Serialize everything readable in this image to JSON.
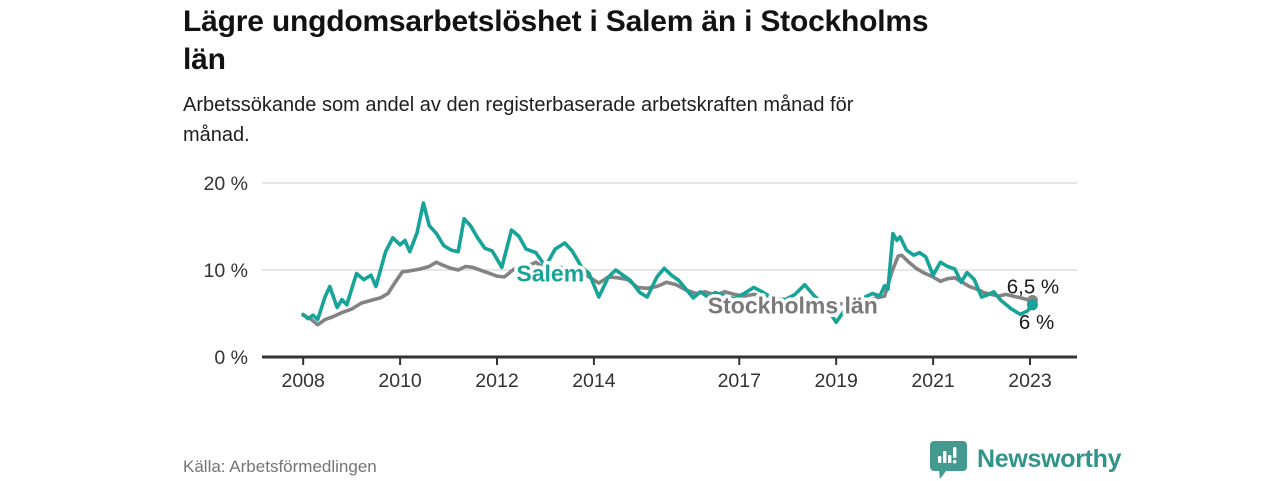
{
  "header": {
    "title": "Lägre ungdomsarbetslöshet i Salem än i Stockholms län",
    "title_lines": [
      "Lägre ungdomsarbetslöshet i Salem än i Stockholms",
      "län"
    ],
    "subtitle": "Arbetssökande som andel av den registerbaserade arbetskraften månad för månad.",
    "subtitle_lines": [
      "Arbetssökande som andel av den registerbaserade arbetskraften månad för",
      "månad."
    ]
  },
  "footer": {
    "source": "Källa: Arbetsförmedlingen",
    "brand": "Newsworthy"
  },
  "colors": {
    "salem": "#17a398",
    "stockholm": "#838383",
    "stockholm_label": "#7a7a7a",
    "grid": "#d8d8d8",
    "axis": "#333333",
    "tick_text": "#333333",
    "value_label": "#1a1a1a",
    "halo": "#ffffff",
    "brand": "#30948b",
    "brand_icon": "#459a90"
  },
  "chart_data": {
    "type": "line",
    "title": "Lägre ungdomsarbetslöshet i Salem än i Stockholms län",
    "subtitle": "Arbetssökande som andel av den registerbaserade arbetskraften månad för månad.",
    "xlabel": "",
    "ylabel": "",
    "unit": "%",
    "grid": "horizontal",
    "legend": "inline-labels",
    "ylim": [
      0,
      20
    ],
    "xlim": [
      2007.15,
      2023.97
    ],
    "yticks": [
      {
        "value": 0,
        "label": "0 %"
      },
      {
        "value": 10,
        "label": "10 %"
      },
      {
        "value": 20,
        "label": "20 %"
      }
    ],
    "xticks": [
      {
        "value": 2008,
        "label": "2008"
      },
      {
        "value": 2010,
        "label": "2010"
      },
      {
        "value": 2012,
        "label": "2012"
      },
      {
        "value": 2014,
        "label": "2014"
      },
      {
        "value": 2017,
        "label": "2017"
      },
      {
        "value": 2019,
        "label": "2019"
      },
      {
        "value": 2021,
        "label": "2021"
      },
      {
        "value": 2023,
        "label": "2023"
      }
    ],
    "series": [
      {
        "name": "Stockholms län",
        "color": "#838383",
        "end_value": 6.5,
        "label": {
          "text": "Stockholms län",
          "x": 2016.35,
          "y": 5.0,
          "color": "#7a7a7a"
        },
        "end_label": {
          "text": "6,5 %",
          "x": 2022.52,
          "y": 7.3
        },
        "points": [
          [
            2008.0,
            4.8
          ],
          [
            2008.15,
            4.4
          ],
          [
            2008.3,
            3.7
          ],
          [
            2008.45,
            4.3
          ],
          [
            2008.6,
            4.6
          ],
          [
            2008.8,
            5.1
          ],
          [
            2009.0,
            5.5
          ],
          [
            2009.2,
            6.2
          ],
          [
            2009.4,
            6.5
          ],
          [
            2009.6,
            6.8
          ],
          [
            2009.75,
            7.3
          ],
          [
            2009.9,
            8.6
          ],
          [
            2010.05,
            9.8
          ],
          [
            2010.2,
            9.9
          ],
          [
            2010.4,
            10.1
          ],
          [
            2010.6,
            10.4
          ],
          [
            2010.75,
            10.9
          ],
          [
            2010.9,
            10.5
          ],
          [
            2011.05,
            10.2
          ],
          [
            2011.2,
            10.0
          ],
          [
            2011.35,
            10.4
          ],
          [
            2011.5,
            10.3
          ],
          [
            2011.65,
            10.0
          ],
          [
            2011.8,
            9.7
          ],
          [
            2012.0,
            9.3
          ],
          [
            2012.15,
            9.2
          ],
          [
            2012.35,
            10.1
          ],
          [
            2012.5,
            10.0
          ],
          [
            2012.65,
            10.5
          ],
          [
            2012.8,
            10.9
          ],
          [
            2012.95,
            10.3
          ],
          [
            2013.1,
            10.0
          ],
          [
            2013.3,
            10.3
          ],
          [
            2013.5,
            10.2
          ],
          [
            2013.7,
            9.8
          ],
          [
            2013.9,
            9.2
          ],
          [
            2014.1,
            8.5
          ],
          [
            2014.3,
            9.2
          ],
          [
            2014.5,
            9.1
          ],
          [
            2014.7,
            8.9
          ],
          [
            2014.9,
            8.0
          ],
          [
            2015.1,
            7.9
          ],
          [
            2015.3,
            8.1
          ],
          [
            2015.5,
            8.6
          ],
          [
            2015.7,
            8.3
          ],
          [
            2015.9,
            7.7
          ],
          [
            2016.1,
            7.3
          ],
          [
            2016.3,
            7.5
          ],
          [
            2016.5,
            7.1
          ],
          [
            2016.7,
            7.5
          ],
          [
            2016.9,
            7.2
          ],
          [
            2017.1,
            7.0
          ],
          [
            2017.3,
            7.2
          ],
          [
            2017.5,
            7.0
          ],
          [
            2017.7,
            6.8
          ],
          [
            2017.9,
            6.6
          ],
          [
            2018.1,
            6.5
          ],
          [
            2018.3,
            6.7
          ],
          [
            2018.5,
            6.5
          ],
          [
            2018.7,
            6.3
          ],
          [
            2018.9,
            6.2
          ],
          [
            2019.1,
            6.1
          ],
          [
            2019.3,
            6.3
          ],
          [
            2019.5,
            6.5
          ],
          [
            2019.7,
            6.6
          ],
          [
            2019.85,
            6.8
          ],
          [
            2020.0,
            7.0
          ],
          [
            2020.15,
            9.8
          ],
          [
            2020.28,
            11.6
          ],
          [
            2020.35,
            11.7
          ],
          [
            2020.5,
            10.9
          ],
          [
            2020.65,
            10.2
          ],
          [
            2020.8,
            9.7
          ],
          [
            2021.0,
            9.2
          ],
          [
            2021.15,
            8.7
          ],
          [
            2021.3,
            9.0
          ],
          [
            2021.45,
            9.1
          ],
          [
            2021.6,
            8.6
          ],
          [
            2021.75,
            8.1
          ],
          [
            2021.9,
            7.8
          ],
          [
            2022.05,
            7.4
          ],
          [
            2022.2,
            7.2
          ],
          [
            2022.35,
            7.0
          ],
          [
            2022.5,
            7.2
          ],
          [
            2022.65,
            7.0
          ],
          [
            2022.8,
            6.8
          ],
          [
            2022.95,
            6.6
          ],
          [
            2023.05,
            6.5
          ]
        ]
      },
      {
        "name": "Salem",
        "color": "#17a398",
        "end_value": 6.0,
        "label": {
          "text": "Salem",
          "x": 2012.4,
          "y": 8.7,
          "color": "#17a398"
        },
        "end_label": {
          "text": "6 %",
          "x": 2022.77,
          "y": 3.2
        },
        "points": [
          [
            2008.0,
            4.9
          ],
          [
            2008.1,
            4.4
          ],
          [
            2008.2,
            4.8
          ],
          [
            2008.3,
            4.3
          ],
          [
            2008.45,
            6.9
          ],
          [
            2008.55,
            8.1
          ],
          [
            2008.7,
            5.7
          ],
          [
            2008.8,
            6.6
          ],
          [
            2008.9,
            6.0
          ],
          [
            2009.1,
            9.6
          ],
          [
            2009.25,
            8.9
          ],
          [
            2009.4,
            9.4
          ],
          [
            2009.5,
            8.1
          ],
          [
            2009.7,
            12.1
          ],
          [
            2009.85,
            13.7
          ],
          [
            2010.0,
            12.9
          ],
          [
            2010.1,
            13.4
          ],
          [
            2010.2,
            12.1
          ],
          [
            2010.35,
            14.3
          ],
          [
            2010.48,
            17.7
          ],
          [
            2010.6,
            15.1
          ],
          [
            2010.75,
            14.2
          ],
          [
            2010.9,
            12.8
          ],
          [
            2011.05,
            12.3
          ],
          [
            2011.2,
            12.1
          ],
          [
            2011.32,
            15.9
          ],
          [
            2011.45,
            15.1
          ],
          [
            2011.6,
            13.7
          ],
          [
            2011.75,
            12.5
          ],
          [
            2011.9,
            12.2
          ],
          [
            2012.1,
            10.3
          ],
          [
            2012.3,
            14.6
          ],
          [
            2012.45,
            13.9
          ],
          [
            2012.6,
            12.4
          ],
          [
            2012.8,
            12.0
          ],
          [
            2013.0,
            10.4
          ],
          [
            2013.2,
            12.4
          ],
          [
            2013.4,
            13.1
          ],
          [
            2013.55,
            12.2
          ],
          [
            2013.75,
            10.3
          ],
          [
            2013.9,
            9.6
          ],
          [
            2014.1,
            6.9
          ],
          [
            2014.3,
            9.2
          ],
          [
            2014.45,
            10.0
          ],
          [
            2014.6,
            9.4
          ],
          [
            2014.75,
            8.8
          ],
          [
            2014.95,
            7.4
          ],
          [
            2015.1,
            6.9
          ],
          [
            2015.3,
            9.2
          ],
          [
            2015.45,
            10.2
          ],
          [
            2015.6,
            9.4
          ],
          [
            2015.75,
            8.8
          ],
          [
            2015.9,
            7.8
          ],
          [
            2016.05,
            6.8
          ],
          [
            2016.2,
            7.5
          ],
          [
            2016.35,
            6.9
          ],
          [
            2016.5,
            7.4
          ],
          [
            2016.7,
            7.0
          ],
          [
            2016.9,
            6.7
          ],
          [
            2017.1,
            7.3
          ],
          [
            2017.3,
            8.0
          ],
          [
            2017.5,
            7.4
          ],
          [
            2017.7,
            6.7
          ],
          [
            2017.95,
            6.6
          ],
          [
            2018.15,
            7.2
          ],
          [
            2018.35,
            8.3
          ],
          [
            2018.55,
            7.0
          ],
          [
            2018.75,
            6.1
          ],
          [
            2019.0,
            4.0
          ],
          [
            2019.2,
            5.6
          ],
          [
            2019.4,
            6.6
          ],
          [
            2019.6,
            6.9
          ],
          [
            2019.75,
            7.3
          ],
          [
            2019.9,
            7.0
          ],
          [
            2020.0,
            8.2
          ],
          [
            2020.07,
            7.8
          ],
          [
            2020.17,
            14.2
          ],
          [
            2020.25,
            13.4
          ],
          [
            2020.32,
            13.8
          ],
          [
            2020.45,
            12.3
          ],
          [
            2020.6,
            11.7
          ],
          [
            2020.72,
            12.0
          ],
          [
            2020.85,
            11.5
          ],
          [
            2021.0,
            9.4
          ],
          [
            2021.15,
            10.9
          ],
          [
            2021.3,
            10.4
          ],
          [
            2021.45,
            10.1
          ],
          [
            2021.58,
            8.6
          ],
          [
            2021.7,
            9.7
          ],
          [
            2021.85,
            8.9
          ],
          [
            2022.0,
            6.9
          ],
          [
            2022.15,
            7.2
          ],
          [
            2022.25,
            7.5
          ],
          [
            2022.4,
            6.5
          ],
          [
            2022.6,
            5.6
          ],
          [
            2022.8,
            4.9
          ],
          [
            2022.95,
            5.3
          ],
          [
            2023.05,
            6.0
          ]
        ]
      }
    ]
  }
}
